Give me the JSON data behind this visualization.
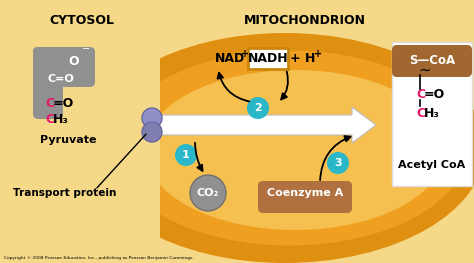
{
  "bg_color": "#F2C94C",
  "mito_outer_color": "#E09010",
  "mito_mid_color": "#F0A020",
  "mito_inner_color": "#F5C050",
  "cytosol_bg": "#F5D070",
  "title_cytosol": "CYTOSOL",
  "title_mito": "MITOCHONDRION",
  "label_pyruvate": "Pyruvate",
  "label_transport": "Transport protein",
  "label_co2": "CO₂",
  "label_coenzyme": "Coenzyme A",
  "label_acetyl": "Acetyl CoA",
  "label_nadplus": "NAD",
  "label_nadplus_sup": "+",
  "label_nadh": "NADH",
  "label_hplus": "+ H",
  "label_hplus_sup": "+",
  "circle_color": "#2AB8C8",
  "nad_box_color": "#C8860A",
  "protein_color1": "#9090C8",
  "protein_color2": "#8080B0",
  "co2_circle_color": "#909090",
  "coenzyme_bg": "#B07040",
  "scoA_bg": "#A06830",
  "gray_structure": "#909090",
  "pink_color": "#E8186A",
  "white": "#FFFFFF",
  "black": "#000000",
  "copyright": "Copyright © 2008 Pearson Education, Inc., publishing as Pearson Benjamin Cummings."
}
